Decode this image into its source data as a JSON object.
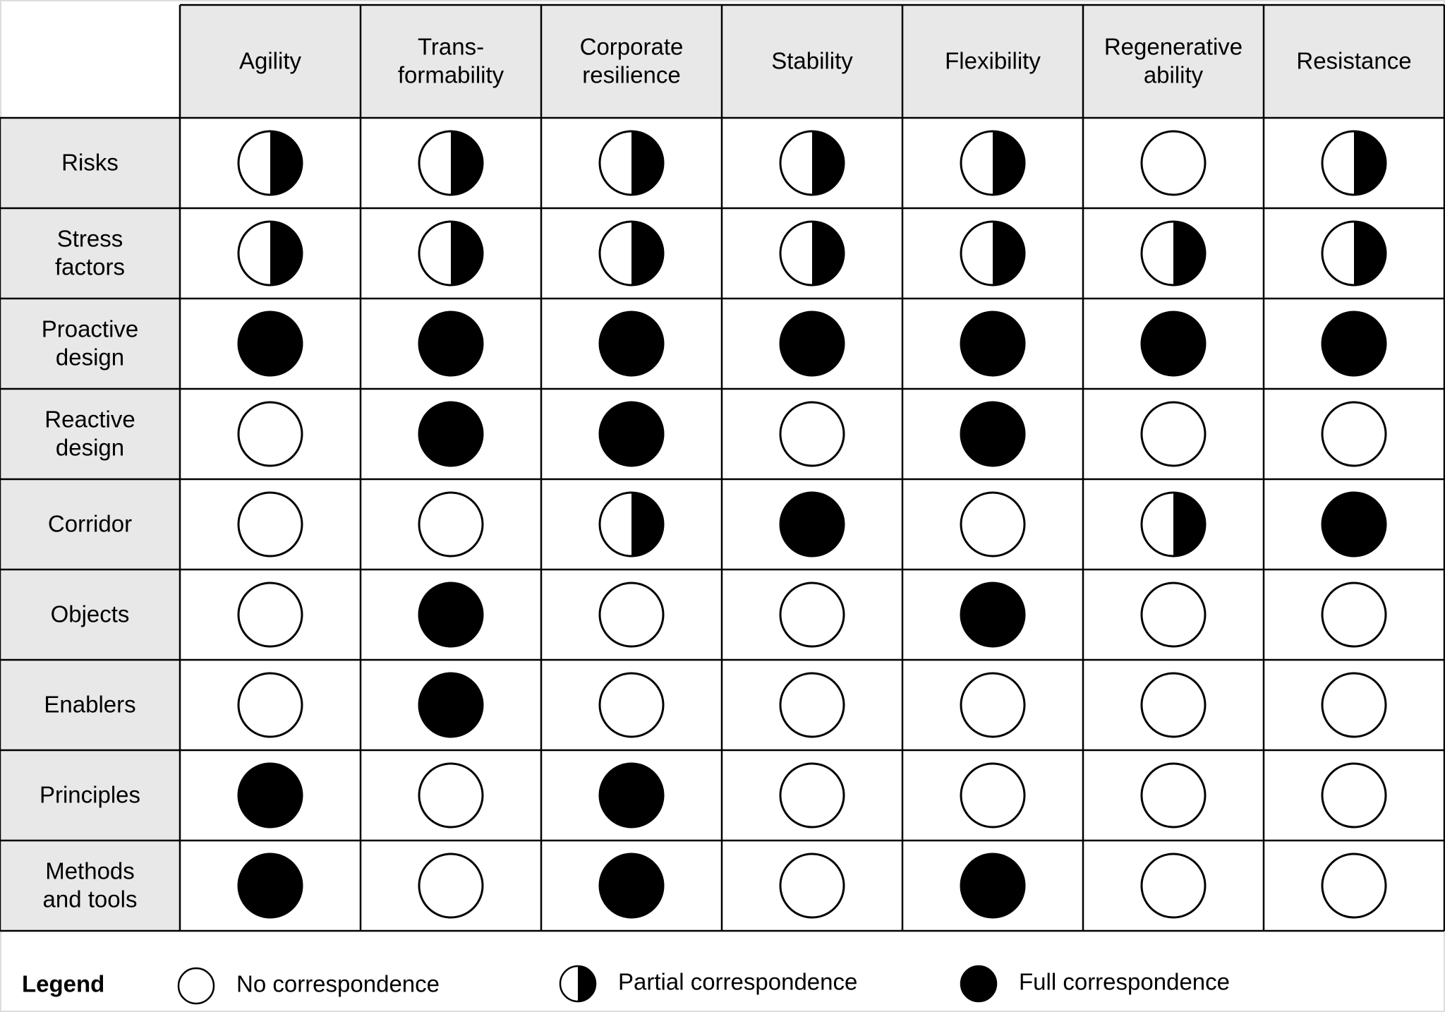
{
  "columns": [
    [
      "Agility"
    ],
    [
      "Trans-",
      "formability"
    ],
    [
      "Corporate",
      "resilience"
    ],
    [
      "Stability"
    ],
    [
      "Flexibility"
    ],
    [
      "Regenerative",
      "ability"
    ],
    [
      "Resistance"
    ]
  ],
  "rows": [
    {
      "label": [
        "Risks"
      ],
      "values": [
        0.5,
        0.5,
        0.5,
        0.5,
        0.5,
        0,
        0.5
      ]
    },
    {
      "label": [
        "Stress",
        "factors"
      ],
      "values": [
        0.5,
        0.5,
        0.5,
        0.5,
        0.5,
        0.5,
        0.5
      ]
    },
    {
      "label": [
        "Proactive",
        "design"
      ],
      "values": [
        1,
        1,
        1,
        1,
        1,
        1,
        1
      ]
    },
    {
      "label": [
        "Reactive",
        "design"
      ],
      "values": [
        0,
        1,
        1,
        0,
        1,
        0,
        0
      ]
    },
    {
      "label": [
        "Corridor"
      ],
      "values": [
        0,
        0,
        0.5,
        1,
        0,
        0.5,
        1
      ]
    },
    {
      "label": [
        "Objects"
      ],
      "values": [
        0,
        1,
        0,
        0,
        1,
        0,
        0
      ]
    },
    {
      "label": [
        "Enablers"
      ],
      "values": [
        0,
        1,
        0,
        0,
        0,
        0,
        0
      ]
    },
    {
      "label": [
        "Principles"
      ],
      "values": [
        1,
        0,
        1,
        0,
        0,
        0,
        0
      ]
    },
    {
      "label": [
        "Methods",
        "and tools"
      ],
      "values": [
        1,
        0,
        1,
        0,
        1,
        0,
        0
      ]
    }
  ],
  "legend": {
    "title": "Legend",
    "items": [
      {
        "label": "No correspondence",
        "value": 0
      },
      {
        "label": "Partial correspondence",
        "value": 0.5
      },
      {
        "label": "Full correspondence",
        "value": 1
      }
    ]
  }
}
